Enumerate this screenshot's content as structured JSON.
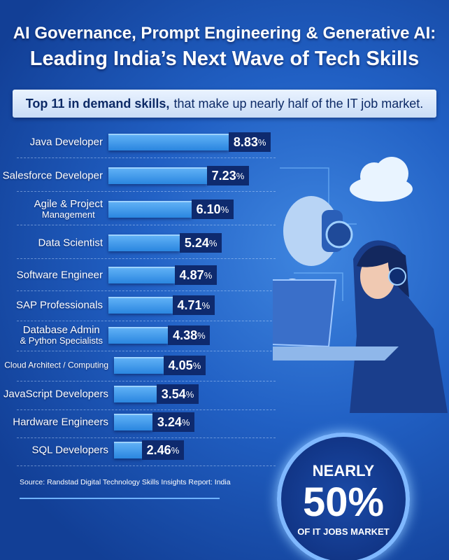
{
  "header": {
    "title_line1": "AI Governance, Prompt Engineering & Generative AI:",
    "title_line2": "Leading India’s Next Wave of Tech Skills"
  },
  "subtitle": {
    "bold": "Top 11 in demand skills,",
    "rest": "that make up nearly half of the IT job market."
  },
  "chart_data": {
    "type": "bar",
    "orientation": "horizontal",
    "title": "Top 11 in demand skills, that make up nearly half of the IT job market.",
    "categories": [
      "Java Developer",
      "Salesforce Developer",
      "Agile & Project Management",
      "Data Scientist",
      "Software Engineer",
      "SAP Professionals",
      "Database Admin & Python Specialists",
      "Cloud Architect / Computing",
      "JavaScript Developers",
      "Hardware Engineers",
      "SQL Developers"
    ],
    "values": [
      8.83,
      7.23,
      6.1,
      5.24,
      4.87,
      4.71,
      4.38,
      4.05,
      3.54,
      3.24,
      2.46
    ],
    "labels": [
      "8.83",
      "7.23",
      "6.10",
      "5.24",
      "4.87",
      "4.71",
      "4.38",
      "4.05",
      "3.54",
      "3.24",
      "2.46"
    ],
    "unit": "%",
    "colors": {
      "bar": "#3a95ea",
      "label_box": "#0e2a6e"
    }
  },
  "source": "Source: Randstad Digital Technology Skills Insights Report: India",
  "badge": {
    "line1": "NEARLY",
    "line2": "50%",
    "line3": "OF IT JOBS MARKET"
  }
}
